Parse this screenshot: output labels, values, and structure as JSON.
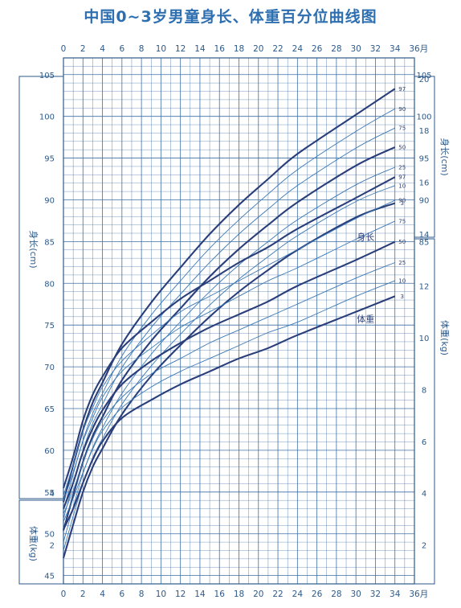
{
  "title": "中国0~3岁男童身长、体重百分位曲线图",
  "colors": {
    "grid": "#3d6fa5",
    "border": "#2d5a8a",
    "curve_main": "#2a3f7a",
    "curve_thin": "#3b78b5",
    "title": "#2d6fb0"
  },
  "chart_data": {
    "type": "line",
    "title": "中国0~3岁男童身长、体重百分位曲线图",
    "x_unit": "月",
    "x_ticks": [
      0,
      2,
      4,
      6,
      8,
      10,
      12,
      14,
      16,
      18,
      20,
      22,
      24,
      26,
      28,
      30,
      32,
      34,
      36
    ],
    "xlim": [
      0,
      36
    ],
    "grid": true,
    "length_panel": {
      "axis_label_left": "身长(cm)",
      "axis_label_right": "身长(cm)",
      "ylim": [
        44,
        107
      ],
      "y_ticks": [
        45,
        50,
        55,
        60,
        65,
        70,
        75,
        80,
        85,
        90,
        95,
        100,
        105
      ],
      "label": "身长",
      "x": [
        0,
        1,
        2,
        3,
        4,
        6,
        9,
        12,
        15,
        18,
        21,
        24,
        30,
        34
      ],
      "series": [
        {
          "name": "3",
          "values": [
            47.1,
            51.1,
            55.0,
            58.0,
            60.2,
            64.3,
            68.9,
            72.6,
            76.0,
            79.0,
            81.6,
            84.0,
            87.9,
            89.6
          ]
        },
        {
          "name": "10",
          "values": [
            48.0,
            52.1,
            56.0,
            59.1,
            61.4,
            65.5,
            70.1,
            73.9,
            77.4,
            80.5,
            83.2,
            85.7,
            89.8,
            91.7
          ]
        },
        {
          "name": "25",
          "values": [
            49.0,
            53.2,
            57.2,
            60.3,
            62.7,
            66.8,
            71.5,
            75.4,
            79.0,
            82.2,
            85.0,
            87.6,
            91.8,
            93.9
          ]
        },
        {
          "name": "50",
          "values": [
            50.4,
            54.6,
            58.6,
            61.7,
            64.0,
            68.4,
            73.1,
            77.0,
            80.8,
            84.1,
            87.0,
            89.7,
            94.1,
            96.3
          ]
        },
        {
          "name": "75",
          "values": [
            51.8,
            56.0,
            60.0,
            63.2,
            65.5,
            69.9,
            74.7,
            78.7,
            82.5,
            85.9,
            88.9,
            91.7,
            96.2,
            98.6
          ]
        },
        {
          "name": "90",
          "values": [
            52.8,
            57.1,
            61.2,
            64.4,
            66.8,
            71.3,
            76.2,
            80.3,
            84.2,
            87.6,
            90.7,
            93.6,
            98.2,
            100.9
          ]
        },
        {
          "name": "97",
          "values": [
            53.8,
            58.2,
            62.4,
            65.7,
            68.1,
            72.7,
            77.7,
            81.9,
            85.9,
            89.4,
            92.5,
            95.5,
            100.2,
            103.3
          ]
        }
      ]
    },
    "weight_panel": {
      "axis_label_left": "体重(kg)",
      "axis_label_right": "体重(kg)",
      "ylim": [
        0.5,
        20.8
      ],
      "y_ticks": [
        2,
        4,
        6,
        8,
        10,
        12,
        14,
        16,
        18,
        20
      ],
      "label": "体重",
      "x": [
        0,
        1,
        2,
        3,
        4,
        6,
        9,
        12,
        15,
        18,
        21,
        24,
        30,
        34
      ],
      "series": [
        {
          "name": "3",
          "values": [
            2.6,
            3.4,
            4.4,
            5.3,
            6.0,
            6.9,
            7.6,
            8.2,
            8.7,
            9.2,
            9.6,
            10.1,
            11.0,
            11.6
          ]
        },
        {
          "name": "10",
          "values": [
            2.9,
            3.8,
            4.8,
            5.7,
            6.4,
            7.3,
            8.1,
            8.7,
            9.2,
            9.7,
            10.2,
            10.6,
            11.6,
            12.2
          ]
        },
        {
          "name": "25",
          "values": [
            3.2,
            4.1,
            5.2,
            6.1,
            6.8,
            7.7,
            8.6,
            9.2,
            9.8,
            10.3,
            10.8,
            11.3,
            12.3,
            12.9
          ]
        },
        {
          "name": "50",
          "values": [
            3.4,
            4.4,
            5.6,
            6.5,
            7.2,
            8.2,
            9.1,
            9.8,
            10.4,
            10.9,
            11.4,
            12.0,
            13.0,
            13.7
          ]
        },
        {
          "name": "75",
          "values": [
            3.7,
            4.8,
            6.0,
            6.9,
            7.7,
            8.7,
            9.6,
            10.4,
            11.0,
            11.6,
            12.2,
            12.7,
            13.8,
            14.5
          ]
        },
        {
          "name": "90",
          "values": [
            3.9,
            5.1,
            6.4,
            7.3,
            8.1,
            9.1,
            10.1,
            11.0,
            11.6,
            12.2,
            12.8,
            13.4,
            14.6,
            15.3
          ]
        },
        {
          "name": "97",
          "values": [
            4.2,
            5.4,
            6.8,
            7.8,
            8.5,
            9.6,
            10.6,
            11.5,
            12.2,
            12.9,
            13.5,
            14.2,
            15.4,
            16.2
          ]
        }
      ]
    }
  }
}
